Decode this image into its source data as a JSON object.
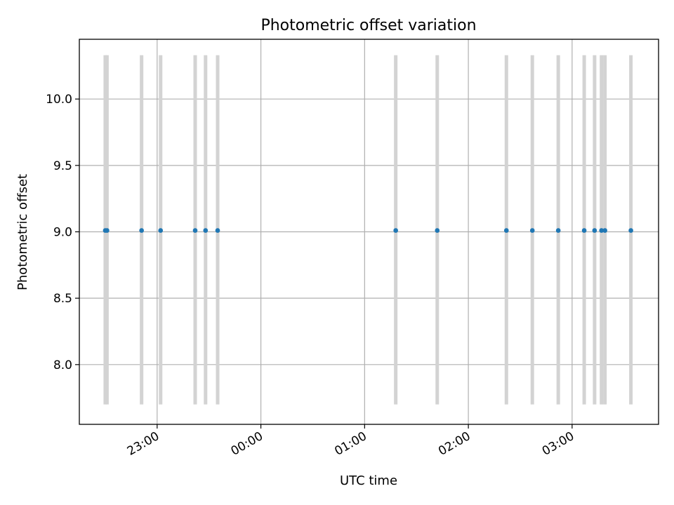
{
  "chart_data": {
    "type": "scatter",
    "title": "Photometric offset variation",
    "xlabel": "UTC time",
    "ylabel": "Photometric offset",
    "x_ticks": [
      "23:00",
      "00:00",
      "01:00",
      "02:00",
      "03:00"
    ],
    "y_ticks": [
      "8.0",
      "8.5",
      "9.0",
      "9.5",
      "10.0"
    ],
    "xlim": [
      "22:15",
      "03:50"
    ],
    "ylim": [
      7.55,
      10.45
    ],
    "grid": true,
    "colors": {
      "points": "#1f77b4",
      "bands": "#d3d3d3",
      "grid": "#b0b0b0"
    },
    "bands": {
      "y_range": [
        7.7,
        10.33
      ]
    },
    "series": [
      {
        "x": [
          "22:30",
          "22:31",
          "22:51",
          "23:02",
          "23:22",
          "23:28",
          "23:35",
          "01:18",
          "01:42",
          "02:22",
          "02:37",
          "02:52",
          "03:07",
          "03:13",
          "03:17",
          "03:19",
          "03:34"
        ],
        "y": [
          9.01,
          9.01,
          9.01,
          9.01,
          9.01,
          9.01,
          9.01,
          9.01,
          9.01,
          9.01,
          9.01,
          9.01,
          9.01,
          9.01,
          9.01,
          9.01,
          9.01
        ]
      }
    ]
  }
}
